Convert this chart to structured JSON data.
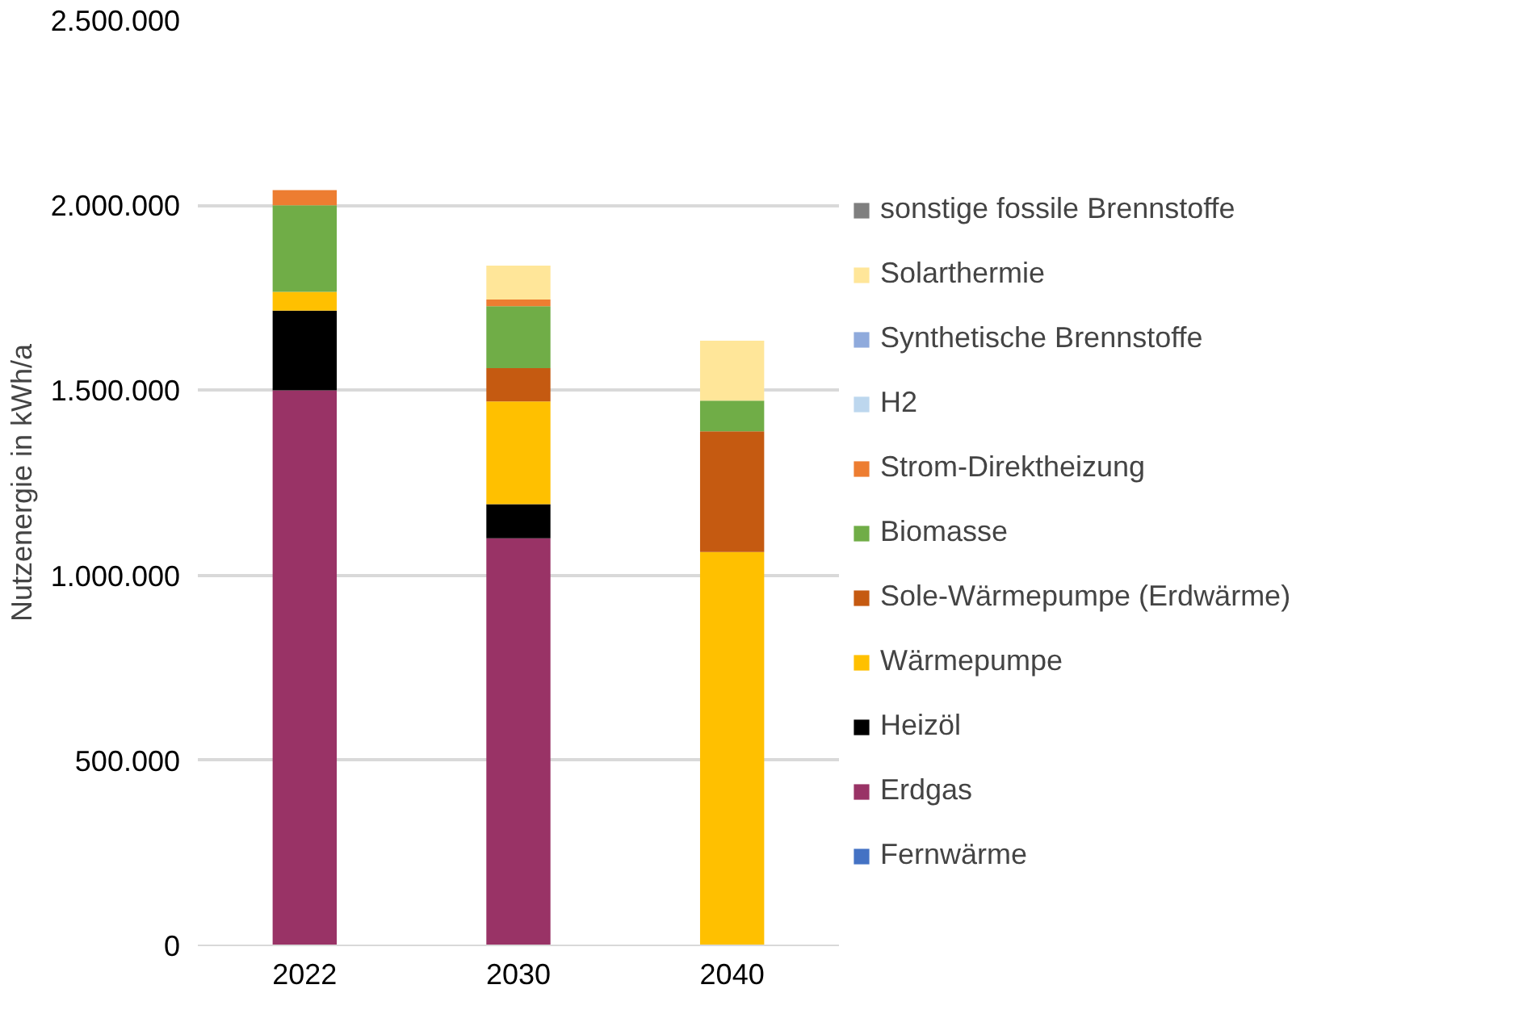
{
  "chart_data": {
    "type": "bar",
    "stacked": true,
    "ylabel": "Nutzenergie in kWh/a",
    "categories": [
      "2022",
      "2030",
      "2040"
    ],
    "series": [
      {
        "name": "Fernwärme",
        "color": "#4472c4",
        "values": [
          0,
          0,
          0
        ]
      },
      {
        "name": "Erdgas",
        "color": "#993366",
        "values": [
          1500000,
          1100000,
          0
        ]
      },
      {
        "name": "Heizöl",
        "color": "#000000",
        "values": [
          215000,
          92000,
          0
        ]
      },
      {
        "name": "Wärmepumpe",
        "color": "#ffc000",
        "values": [
          51000,
          278000,
          1063000
        ]
      },
      {
        "name": "Sole-Wärmepumpe (Erdwärme)",
        "color": "#c55a11",
        "values": [
          0,
          90000,
          326000
        ]
      },
      {
        "name": "Biomasse",
        "color": "#70ad47",
        "values": [
          234000,
          167000,
          83000
        ]
      },
      {
        "name": "Strom-Direktheizung",
        "color": "#ed7d31",
        "values": [
          41000,
          18000,
          0
        ]
      },
      {
        "name": "H2",
        "color": "#bdd7ee",
        "values": [
          0,
          0,
          0
        ]
      },
      {
        "name": "Synthetische Brennstoffe",
        "color": "#8faadc",
        "values": [
          0,
          0,
          0
        ]
      },
      {
        "name": "Solarthermie",
        "color": "#ffe699",
        "values": [
          0,
          92000,
          162000
        ]
      },
      {
        "name": "sonstige fossile Brennstoffe",
        "color": "#7f7f7f",
        "values": [
          0,
          0,
          0
        ]
      }
    ],
    "ylim": [
      0,
      2500000
    ],
    "yticks": [
      {
        "value": 0,
        "label": "0"
      },
      {
        "value": 500000,
        "label": "500.000"
      },
      {
        "value": 1000000,
        "label": "1.000.000"
      },
      {
        "value": 1500000,
        "label": "1.500.000"
      },
      {
        "value": 2000000,
        "label": "2.000.000"
      },
      {
        "value": 2500000,
        "label": "2.500.000"
      }
    ],
    "grid": "y",
    "legend": "right"
  }
}
